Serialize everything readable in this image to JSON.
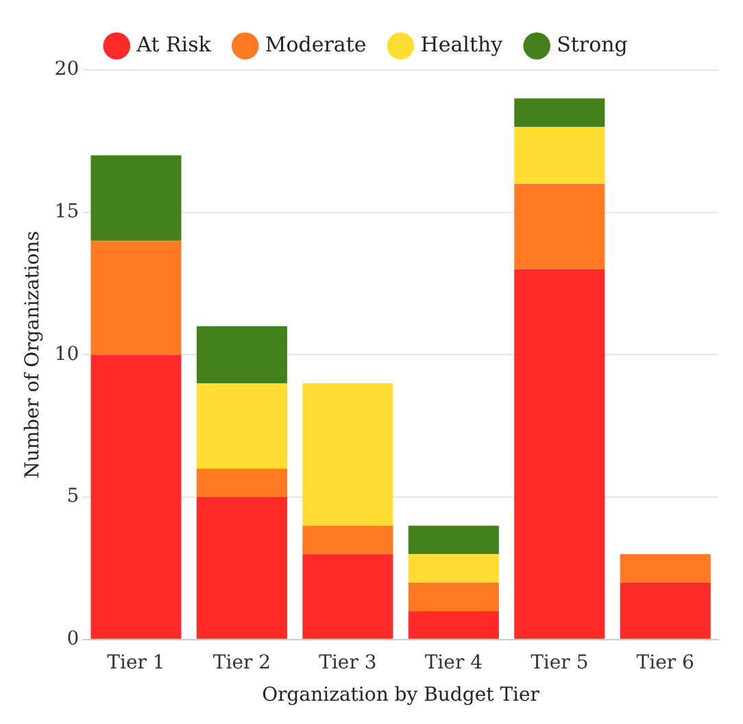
{
  "chart_data": {
    "type": "bar",
    "stacked": true,
    "xlabel": "Organization by Budget Tier",
    "ylabel": "Number of Organizations",
    "categories": [
      "Tier 1",
      "Tier 2",
      "Tier 3",
      "Tier 4",
      "Tier 5",
      "Tier 6"
    ],
    "series": [
      {
        "name": "At Risk",
        "color": "#ff2a2a",
        "values": [
          10,
          5,
          3,
          1,
          13,
          2
        ]
      },
      {
        "name": "Moderate",
        "color": "#ff7a22",
        "values": [
          4,
          1,
          1,
          1,
          3,
          1
        ]
      },
      {
        "name": "Healthy",
        "color": "#ffdd33",
        "values": [
          0,
          3,
          5,
          1,
          2,
          0
        ]
      },
      {
        "name": "Strong",
        "color": "#44801c",
        "values": [
          3,
          2,
          0,
          1,
          1,
          0
        ]
      }
    ],
    "ylim": [
      0,
      20
    ],
    "yticks": [
      0,
      5,
      10,
      15,
      20
    ],
    "grid": "y",
    "legend": "top"
  }
}
